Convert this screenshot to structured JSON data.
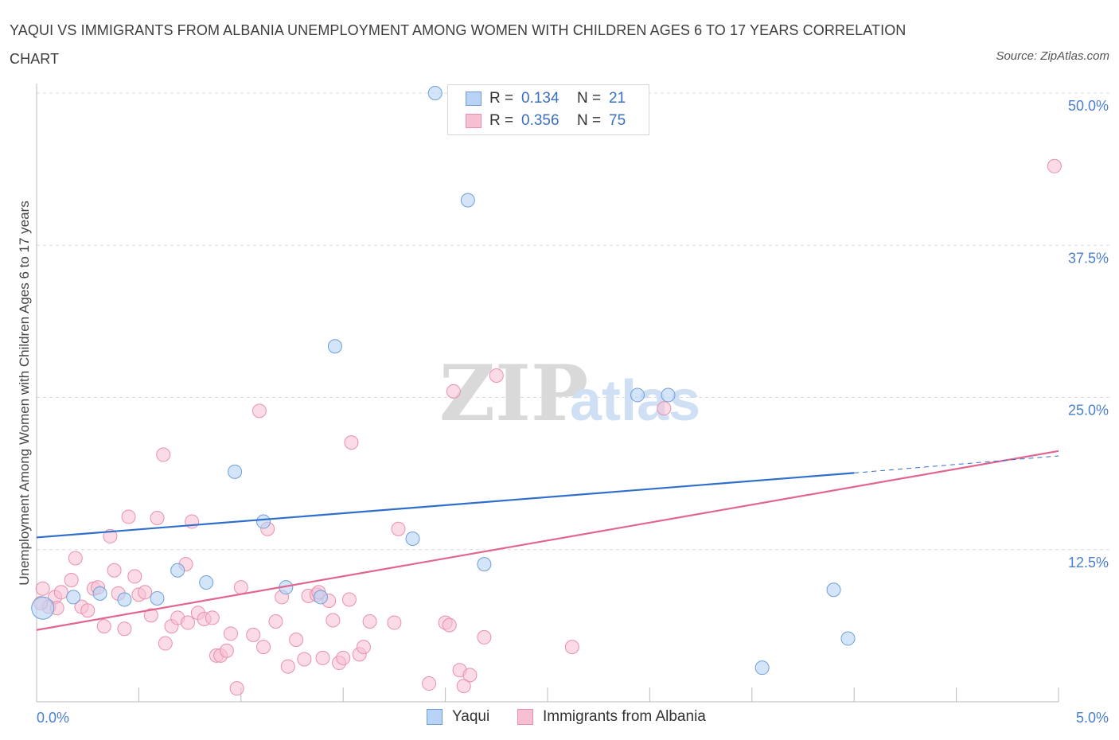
{
  "title": "YAQUI VS IMMIGRANTS FROM ALBANIA UNEMPLOYMENT AMONG WOMEN WITH CHILDREN AGES 6 TO 17 YEARS CORRELATION CHART",
  "source": "Source: ZipAtlas.com",
  "watermark": {
    "zip": "ZIP",
    "atlas": "atlas"
  },
  "colors": {
    "yaqui_fill": "#b8d3f5",
    "yaqui_stroke": "#6f9fd8",
    "yaqui_line": "#2f6fcb",
    "albania_fill": "#f7c0d2",
    "albania_stroke": "#e98fae",
    "albania_line": "#e0668f",
    "axis_label": "#4a7fd0"
  },
  "legend": {
    "yaqui": {
      "r_label": "R =",
      "r_value": "0.134",
      "n_label": "N =",
      "n_value": "21"
    },
    "albania": {
      "r_label": "R =",
      "r_value": "0.356",
      "n_label": "N =",
      "n_value": "75"
    }
  },
  "bottom_legend": {
    "yaqui": "Yaqui",
    "albania": "Immigrants from Albania"
  },
  "chart_data": {
    "type": "scatter",
    "title": "YAQUI VS IMMIGRANTS FROM ALBANIA UNEMPLOYMENT AMONG WOMEN WITH CHILDREN AGES 6 TO 17 YEARS CORRELATION CHART",
    "xlabel": "",
    "ylabel": "Unemployment Among Women with Children Ages 6 to 17 years",
    "xlim": [
      0,
      5
    ],
    "ylim": [
      0,
      50
    ],
    "x_tick_labels": [
      "0.0%",
      "5.0%"
    ],
    "y_ticks": [
      12.5,
      25.0,
      37.5,
      50.0
    ],
    "y_tick_labels": [
      "12.5%",
      "25.0%",
      "37.5%",
      "50.0%"
    ],
    "grid": true,
    "series": [
      {
        "name": "Yaqui",
        "r": 0.134,
        "n": 21,
        "trend": {
          "x0": 0,
          "y0": 13.5,
          "x1": 4.0,
          "y1": 18.8,
          "dashed_to_x": 5.0,
          "dashed_to_y": 20.2
        },
        "points": [
          [
            0.03,
            7.7
          ],
          [
            0.18,
            8.6
          ],
          [
            0.31,
            8.9
          ],
          [
            0.43,
            8.4
          ],
          [
            0.59,
            8.5
          ],
          [
            0.69,
            10.8
          ],
          [
            0.83,
            9.8
          ],
          [
            0.97,
            18.9
          ],
          [
            1.11,
            14.8
          ],
          [
            1.22,
            9.4
          ],
          [
            1.39,
            8.6
          ],
          [
            1.46,
            29.2
          ],
          [
            1.84,
            13.4
          ],
          [
            1.95,
            50.0
          ],
          [
            2.11,
            41.2
          ],
          [
            2.19,
            11.3
          ],
          [
            2.94,
            25.2
          ],
          [
            3.09,
            25.2
          ],
          [
            3.55,
            2.8
          ],
          [
            3.9,
            9.2
          ],
          [
            3.97,
            5.2
          ]
        ]
      },
      {
        "name": "Immigrants from Albania",
        "r": 0.356,
        "n": 75,
        "trend": {
          "x0": 0,
          "y0": 5.9,
          "x1": 5.0,
          "y1": 20.6
        },
        "points": [
          [
            0.03,
            9.3
          ],
          [
            0.06,
            7.8
          ],
          [
            0.09,
            8.6
          ],
          [
            0.12,
            9.0
          ],
          [
            0.17,
            10.0
          ],
          [
            0.19,
            11.8
          ],
          [
            0.22,
            7.8
          ],
          [
            0.25,
            7.5
          ],
          [
            0.28,
            9.3
          ],
          [
            0.3,
            9.4
          ],
          [
            0.33,
            6.2
          ],
          [
            0.36,
            13.6
          ],
          [
            0.38,
            10.8
          ],
          [
            0.4,
            8.9
          ],
          [
            0.43,
            6.0
          ],
          [
            0.45,
            15.2
          ],
          [
            0.48,
            10.3
          ],
          [
            0.5,
            8.8
          ],
          [
            0.53,
            9.0
          ],
          [
            0.56,
            7.1
          ],
          [
            0.59,
            15.1
          ],
          [
            0.62,
            20.3
          ],
          [
            0.63,
            4.8
          ],
          [
            0.66,
            6.2
          ],
          [
            0.69,
            6.9
          ],
          [
            0.73,
            11.3
          ],
          [
            0.74,
            6.5
          ],
          [
            0.76,
            14.8
          ],
          [
            0.79,
            7.3
          ],
          [
            0.82,
            6.8
          ],
          [
            0.86,
            6.9
          ],
          [
            0.88,
            3.8
          ],
          [
            0.9,
            3.8
          ],
          [
            0.93,
            4.2
          ],
          [
            0.95,
            5.6
          ],
          [
            0.98,
            1.1
          ],
          [
            1.0,
            9.4
          ],
          [
            1.06,
            5.5
          ],
          [
            1.09,
            23.9
          ],
          [
            1.11,
            4.5
          ],
          [
            1.13,
            14.2
          ],
          [
            1.17,
            6.6
          ],
          [
            1.2,
            8.6
          ],
          [
            1.23,
            2.9
          ],
          [
            1.27,
            5.1
          ],
          [
            1.31,
            3.5
          ],
          [
            1.33,
            8.7
          ],
          [
            1.37,
            8.8
          ],
          [
            1.4,
            3.6
          ],
          [
            1.43,
            8.3
          ],
          [
            1.45,
            6.7
          ],
          [
            1.48,
            3.2
          ],
          [
            1.5,
            3.6
          ],
          [
            1.53,
            8.4
          ],
          [
            1.54,
            21.3
          ],
          [
            1.58,
            3.9
          ],
          [
            1.6,
            4.5
          ],
          [
            1.63,
            6.6
          ],
          [
            1.75,
            6.5
          ],
          [
            1.77,
            14.2
          ],
          [
            1.92,
            1.5
          ],
          [
            2.0,
            6.5
          ],
          [
            2.02,
            6.3
          ],
          [
            2.04,
            25.5
          ],
          [
            2.07,
            2.6
          ],
          [
            2.09,
            1.3
          ],
          [
            2.12,
            2.2
          ],
          [
            2.19,
            5.3
          ],
          [
            2.25,
            26.8
          ],
          [
            2.62,
            4.5
          ],
          [
            3.07,
            24.1
          ],
          [
            4.98,
            44.0
          ],
          [
            1.38,
            9.0
          ],
          [
            0.1,
            7.7
          ],
          [
            0.02,
            8.1
          ]
        ]
      }
    ]
  }
}
